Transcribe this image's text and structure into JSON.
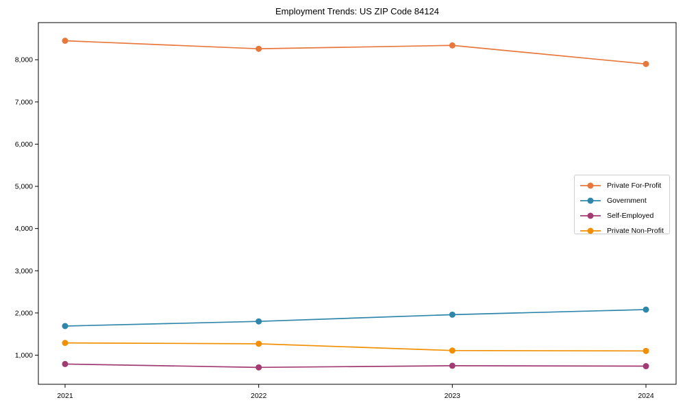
{
  "chart_data": {
    "type": "line",
    "title": "Employment Trends: US ZIP Code 84124",
    "categories": [
      "2021",
      "2022",
      "2023",
      "2024"
    ],
    "series": [
      {
        "name": "Private For-Profit",
        "color": "#E8773B",
        "values": [
          8450,
          8260,
          8340,
          7900
        ]
      },
      {
        "name": "Government",
        "color": "#2E86AB",
        "values": [
          1690,
          1800,
          1960,
          2080
        ]
      },
      {
        "name": "Self-Employed",
        "color": "#A23B72",
        "values": [
          790,
          710,
          750,
          740
        ]
      },
      {
        "name": "Private Non-Profit",
        "color": "#F18F01",
        "values": [
          1290,
          1270,
          1110,
          1100
        ]
      }
    ],
    "xlabel": "",
    "ylabel": "",
    "ylim": [
      310,
      8880
    ],
    "y_ticks": [
      1000,
      2000,
      3000,
      4000,
      5000,
      6000,
      7000,
      8000
    ],
    "y_tick_labels": [
      "1,000",
      "2,000",
      "3,000",
      "4,000",
      "5,000",
      "6,000",
      "7,000",
      "8,000"
    ],
    "grid": false,
    "legend_position": "center-right",
    "marker": "circle",
    "axis_color": "#000000",
    "background": "#ffffff"
  }
}
